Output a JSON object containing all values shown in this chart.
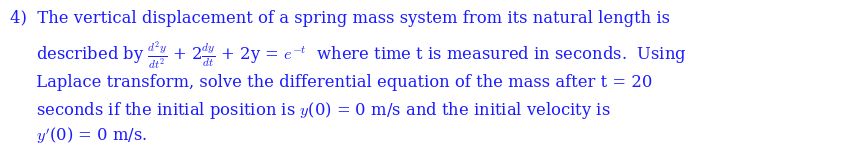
{
  "background_color": "#ffffff",
  "text_color": "#1a1aff",
  "font_size": 11.8,
  "line1": "4)  The vertical displacement of a spring mass system from its natural length is",
  "line2_pre": "     described by ",
  "line2_eq": "$\\frac{d^2y}{dt^2}$ + 2$\\frac{dy}{dt}$ + 2y = $e^{-t}$  where time t is measured in seconds.  Using",
  "line3": "     Laplace transform, solve the differential equation of the mass after t = 20",
  "line4": "     seconds if the initial position is $y$(0) = 0 m/s and the initial velocity is",
  "line5": "     $y'$(0) = 0 m/s.",
  "fig_width": 8.56,
  "fig_height": 1.62,
  "dpi": 100
}
